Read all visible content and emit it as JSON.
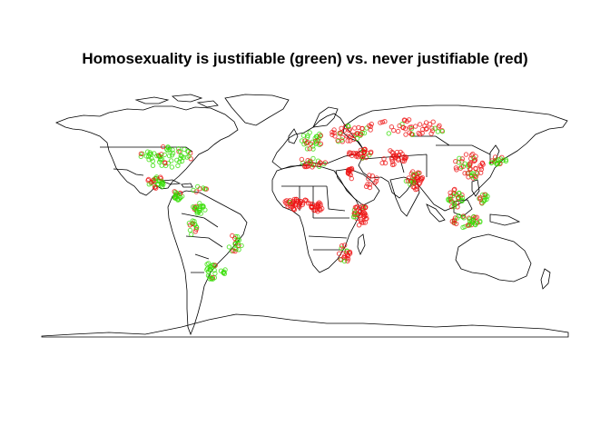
{
  "title": "Homosexuality is justifiable (green) vs. never justifiable (red)",
  "legend_colors": {
    "justifiable": "#33dd00",
    "never_justifiable": "#ee1111",
    "coast": "#000000"
  },
  "map_projection": "equirectangular",
  "lon_range": [
    -180,
    180
  ],
  "lat_range": [
    -90,
    90
  ],
  "clusters": [
    {
      "region": "usa",
      "lon": -95,
      "lat": 38,
      "spread": [
        18,
        7
      ],
      "n": 60,
      "green_ratio": 0.85
    },
    {
      "region": "mexico",
      "lon": -102,
      "lat": 22,
      "spread": [
        6,
        4
      ],
      "n": 30,
      "green_ratio": 0.5
    },
    {
      "region": "central-america",
      "lon": -87,
      "lat": 14,
      "spread": [
        4,
        3
      ],
      "n": 18,
      "green_ratio": 0.6
    },
    {
      "region": "caribbean",
      "lon": -72,
      "lat": 18,
      "spread": [
        5,
        2
      ],
      "n": 8,
      "green_ratio": 0.5
    },
    {
      "region": "colombia-venezuela",
      "lon": -72,
      "lat": 6,
      "spread": [
        5,
        4
      ],
      "n": 22,
      "green_ratio": 0.8
    },
    {
      "region": "peru-ecuador",
      "lon": -77,
      "lat": -6,
      "spread": [
        3,
        5
      ],
      "n": 14,
      "green_ratio": 0.7
    },
    {
      "region": "brazil",
      "lon": -48,
      "lat": -16,
      "spread": [
        5,
        6
      ],
      "n": 20,
      "green_ratio": 0.7
    },
    {
      "region": "argentina-chile",
      "lon": -64,
      "lat": -32,
      "spread": [
        4,
        6
      ],
      "n": 24,
      "green_ratio": 0.85
    },
    {
      "region": "uruguay",
      "lon": -56,
      "lat": -33,
      "spread": [
        2,
        2
      ],
      "n": 6,
      "green_ratio": 0.9
    },
    {
      "region": "western-europe",
      "lon": 5,
      "lat": 48,
      "spread": [
        8,
        6
      ],
      "n": 30,
      "green_ratio": 0.7
    },
    {
      "region": "eastern-europe",
      "lon": 30,
      "lat": 52,
      "spread": [
        12,
        6
      ],
      "n": 40,
      "green_ratio": 0.2
    },
    {
      "region": "russia",
      "lon": 70,
      "lat": 56,
      "spread": [
        28,
        5
      ],
      "n": 50,
      "green_ratio": 0.15
    },
    {
      "region": "turkey-caucasus",
      "lon": 38,
      "lat": 40,
      "spread": [
        8,
        3
      ],
      "n": 30,
      "green_ratio": 0.1
    },
    {
      "region": "iran-central-asia",
      "lon": 60,
      "lat": 37,
      "spread": [
        10,
        5
      ],
      "n": 30,
      "green_ratio": 0.05
    },
    {
      "region": "north-africa",
      "lon": 4,
      "lat": 34,
      "spread": [
        10,
        3
      ],
      "n": 24,
      "green_ratio": 0.1
    },
    {
      "region": "egypt",
      "lon": 31,
      "lat": 28,
      "spread": [
        2,
        4
      ],
      "n": 14,
      "green_ratio": 0.05
    },
    {
      "region": "west-africa",
      "lon": -5,
      "lat": 9,
      "spread": [
        9,
        4
      ],
      "n": 40,
      "green_ratio": 0.1
    },
    {
      "region": "nigeria-cameroon",
      "lon": 8,
      "lat": 7,
      "spread": [
        4,
        3
      ],
      "n": 22,
      "green_ratio": 0.05
    },
    {
      "region": "east-africa",
      "lon": 38,
      "lat": 2,
      "spread": [
        5,
        7
      ],
      "n": 40,
      "green_ratio": 0.1
    },
    {
      "region": "southern-africa",
      "lon": 28,
      "lat": -22,
      "spread": [
        5,
        6
      ],
      "n": 22,
      "green_ratio": 0.35
    },
    {
      "region": "arabia",
      "lon": 45,
      "lat": 22,
      "spread": [
        5,
        5
      ],
      "n": 10,
      "green_ratio": 0.1
    },
    {
      "region": "india-pakistan",
      "lon": 75,
      "lat": 23,
      "spread": [
        6,
        6
      ],
      "n": 40,
      "green_ratio": 0.2
    },
    {
      "region": "china",
      "lon": 112,
      "lat": 32,
      "spread": [
        10,
        8
      ],
      "n": 50,
      "green_ratio": 0.3
    },
    {
      "region": "korea-japan",
      "lon": 132,
      "lat": 36,
      "spread": [
        6,
        3
      ],
      "n": 18,
      "green_ratio": 0.6
    },
    {
      "region": "southeast-asia",
      "lon": 103,
      "lat": 12,
      "spread": [
        5,
        6
      ],
      "n": 30,
      "green_ratio": 0.6
    },
    {
      "region": "philippines",
      "lon": 122,
      "lat": 12,
      "spread": [
        3,
        4
      ],
      "n": 14,
      "green_ratio": 0.7
    },
    {
      "region": "malaysia-indonesia",
      "lon": 110,
      "lat": -2,
      "spread": [
        10,
        4
      ],
      "n": 36,
      "green_ratio": 0.45
    }
  ]
}
